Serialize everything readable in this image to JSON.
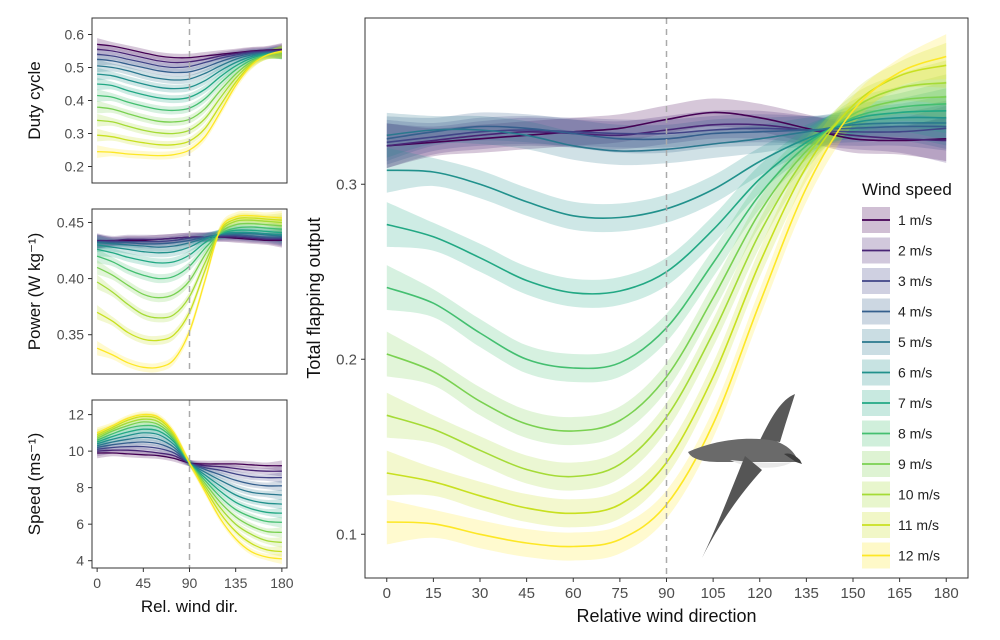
{
  "chart_data": [
    {
      "type": "line",
      "id": "duty",
      "ylabel": "Duty cycle",
      "xlabel": "",
      "ylim": [
        0.15,
        0.65
      ],
      "xlim": [
        -5,
        185
      ],
      "yticks": [
        "0.6",
        "0.5",
        "0.4",
        "0.3",
        "0.2"
      ],
      "ytick_values": [
        0.6,
        0.5,
        0.4,
        0.3,
        0.2
      ],
      "reference_x": 90,
      "series_note": "speeds 1..12 m/s, values at x = 0,15,...,180",
      "series": [
        {
          "name": "1 m/s",
          "values": [
            0.57,
            0.565,
            0.555,
            0.545,
            0.535,
            0.53,
            0.53,
            0.535,
            0.54,
            0.545,
            0.55,
            0.553,
            0.555
          ]
        },
        {
          "name": "2 m/s",
          "values": [
            0.555,
            0.55,
            0.54,
            0.53,
            0.52,
            0.515,
            0.517,
            0.525,
            0.535,
            0.542,
            0.548,
            0.551,
            0.553
          ]
        },
        {
          "name": "3 m/s",
          "values": [
            0.54,
            0.535,
            0.525,
            0.515,
            0.505,
            0.5,
            0.503,
            0.515,
            0.528,
            0.538,
            0.545,
            0.548,
            0.55
          ]
        },
        {
          "name": "4 m/s",
          "values": [
            0.525,
            0.52,
            0.51,
            0.5,
            0.49,
            0.485,
            0.487,
            0.5,
            0.518,
            0.532,
            0.542,
            0.546,
            0.548
          ]
        },
        {
          "name": "5 m/s",
          "values": [
            0.505,
            0.5,
            0.49,
            0.477,
            0.467,
            0.462,
            0.465,
            0.482,
            0.505,
            0.525,
            0.538,
            0.544,
            0.546
          ]
        },
        {
          "name": "6 m/s",
          "values": [
            0.48,
            0.475,
            0.462,
            0.45,
            0.44,
            0.436,
            0.44,
            0.46,
            0.49,
            0.515,
            0.533,
            0.542,
            0.545
          ]
        },
        {
          "name": "7 m/s",
          "values": [
            0.45,
            0.445,
            0.43,
            0.418,
            0.408,
            0.404,
            0.41,
            0.434,
            0.472,
            0.505,
            0.528,
            0.54,
            0.544
          ]
        },
        {
          "name": "8 m/s",
          "values": [
            0.415,
            0.41,
            0.395,
            0.383,
            0.373,
            0.37,
            0.377,
            0.405,
            0.452,
            0.493,
            0.522,
            0.538,
            0.544
          ]
        },
        {
          "name": "9 m/s",
          "values": [
            0.38,
            0.374,
            0.36,
            0.347,
            0.337,
            0.335,
            0.343,
            0.375,
            0.43,
            0.48,
            0.517,
            0.537,
            0.544
          ]
        },
        {
          "name": "10 m/s",
          "values": [
            0.34,
            0.335,
            0.322,
            0.31,
            0.302,
            0.3,
            0.31,
            0.345,
            0.408,
            0.468,
            0.512,
            0.536,
            0.545
          ]
        },
        {
          "name": "11 m/s",
          "values": [
            0.295,
            0.29,
            0.28,
            0.272,
            0.266,
            0.266,
            0.277,
            0.315,
            0.385,
            0.455,
            0.508,
            0.536,
            0.547
          ]
        },
        {
          "name": "12 m/s",
          "values": [
            0.245,
            0.243,
            0.238,
            0.235,
            0.233,
            0.236,
            0.25,
            0.29,
            0.365,
            0.445,
            0.505,
            0.537,
            0.55
          ]
        }
      ]
    },
    {
      "type": "line",
      "id": "power",
      "ylabel": "Power (W kg⁻¹)",
      "xlabel": "",
      "ylim": [
        0.315,
        0.462
      ],
      "xlim": [
        -5,
        185
      ],
      "yticks": [
        "0.45",
        "0.40",
        "0.35"
      ],
      "ytick_values": [
        0.45,
        0.4,
        0.35
      ],
      "reference_x": 90,
      "series": [
        {
          "name": "1 m/s",
          "values": [
            0.433,
            0.433,
            0.434,
            0.434,
            0.435,
            0.436,
            0.437,
            0.437,
            0.437,
            0.436,
            0.435,
            0.434,
            0.434
          ]
        },
        {
          "name": "2 m/s",
          "values": [
            0.434,
            0.434,
            0.435,
            0.435,
            0.435,
            0.436,
            0.437,
            0.437,
            0.437,
            0.437,
            0.436,
            0.435,
            0.435
          ]
        },
        {
          "name": "3 m/s",
          "values": [
            0.433,
            0.433,
            0.433,
            0.433,
            0.433,
            0.434,
            0.436,
            0.437,
            0.438,
            0.438,
            0.437,
            0.436,
            0.436
          ]
        },
        {
          "name": "4 m/s",
          "values": [
            0.433,
            0.432,
            0.432,
            0.431,
            0.431,
            0.432,
            0.434,
            0.437,
            0.439,
            0.439,
            0.438,
            0.437,
            0.437
          ]
        },
        {
          "name": "5 m/s",
          "values": [
            0.432,
            0.431,
            0.43,
            0.429,
            0.428,
            0.429,
            0.432,
            0.436,
            0.439,
            0.44,
            0.44,
            0.439,
            0.438
          ]
        },
        {
          "name": "6 m/s",
          "values": [
            0.43,
            0.428,
            0.426,
            0.424,
            0.423,
            0.424,
            0.428,
            0.435,
            0.44,
            0.441,
            0.441,
            0.44,
            0.439
          ]
        },
        {
          "name": "7 m/s",
          "values": [
            0.426,
            0.423,
            0.419,
            0.416,
            0.414,
            0.415,
            0.421,
            0.432,
            0.44,
            0.443,
            0.443,
            0.442,
            0.441
          ]
        },
        {
          "name": "8 m/s",
          "values": [
            0.42,
            0.415,
            0.408,
            0.403,
            0.4,
            0.402,
            0.411,
            0.427,
            0.44,
            0.445,
            0.446,
            0.445,
            0.444
          ]
        },
        {
          "name": "9 m/s",
          "values": [
            0.41,
            0.403,
            0.394,
            0.386,
            0.383,
            0.386,
            0.398,
            0.421,
            0.441,
            0.448,
            0.449,
            0.448,
            0.447
          ]
        },
        {
          "name": "10 m/s",
          "values": [
            0.397,
            0.388,
            0.377,
            0.368,
            0.365,
            0.368,
            0.384,
            0.414,
            0.442,
            0.451,
            0.452,
            0.451,
            0.45
          ]
        },
        {
          "name": "11 m/s",
          "values": [
            0.37,
            0.362,
            0.352,
            0.346,
            0.345,
            0.35,
            0.37,
            0.407,
            0.443,
            0.453,
            0.454,
            0.453,
            0.452
          ]
        },
        {
          "name": "12 m/s",
          "values": [
            0.338,
            0.332,
            0.325,
            0.321,
            0.321,
            0.328,
            0.353,
            0.398,
            0.444,
            0.455,
            0.456,
            0.455,
            0.454
          ]
        }
      ]
    },
    {
      "type": "line",
      "id": "speed",
      "ylabel": "Speed (ms⁻¹)",
      "xlabel": "Rel. wind dir.",
      "ylim": [
        3.6,
        12.8
      ],
      "xlim": [
        -5,
        185
      ],
      "yticks": [
        "12",
        "10",
        "8",
        "6",
        "4"
      ],
      "ytick_values": [
        12,
        10,
        8,
        6,
        4
      ],
      "xticks": [
        "0",
        "45",
        "90",
        "135",
        "180"
      ],
      "xtick_values": [
        0,
        45,
        90,
        135,
        180
      ],
      "reference_x": 90,
      "series": [
        {
          "name": "1 m/s",
          "values": [
            9.9,
            9.9,
            9.85,
            9.8,
            9.75,
            9.6,
            9.35,
            9.3,
            9.3,
            9.3,
            9.25,
            9.2,
            9.2
          ]
        },
        {
          "name": "2 m/s",
          "values": [
            10.0,
            10.05,
            10.05,
            10.0,
            9.9,
            9.75,
            9.35,
            9.2,
            9.15,
            9.05,
            8.95,
            8.9,
            8.9
          ]
        },
        {
          "name": "3 m/s",
          "values": [
            10.1,
            10.2,
            10.25,
            10.25,
            10.15,
            9.9,
            9.35,
            9.1,
            8.95,
            8.75,
            8.6,
            8.55,
            8.55
          ]
        },
        {
          "name": "4 m/s",
          "values": [
            10.2,
            10.35,
            10.45,
            10.5,
            10.4,
            10.05,
            9.35,
            9.0,
            8.7,
            8.4,
            8.2,
            8.1,
            8.1
          ]
        },
        {
          "name": "5 m/s",
          "values": [
            10.3,
            10.5,
            10.65,
            10.75,
            10.65,
            10.2,
            9.35,
            8.85,
            8.4,
            8.0,
            7.75,
            7.65,
            7.6
          ]
        },
        {
          "name": "6 m/s",
          "values": [
            10.4,
            10.65,
            10.85,
            11.0,
            10.9,
            10.35,
            9.35,
            8.7,
            8.1,
            7.6,
            7.3,
            7.15,
            7.1
          ]
        },
        {
          "name": "7 m/s",
          "values": [
            10.5,
            10.8,
            11.05,
            11.2,
            11.1,
            10.5,
            9.35,
            8.55,
            7.8,
            7.2,
            6.85,
            6.65,
            6.6
          ]
        },
        {
          "name": "8 m/s",
          "values": [
            10.6,
            10.95,
            11.25,
            11.4,
            11.3,
            10.6,
            9.35,
            8.4,
            7.5,
            6.8,
            6.4,
            6.15,
            6.1
          ]
        },
        {
          "name": "9 m/s",
          "values": [
            10.7,
            11.1,
            11.4,
            11.6,
            11.45,
            10.7,
            9.35,
            8.25,
            7.2,
            6.4,
            5.9,
            5.6,
            5.55
          ]
        },
        {
          "name": "10 m/s",
          "values": [
            10.8,
            11.2,
            11.55,
            11.75,
            11.6,
            10.8,
            9.35,
            8.1,
            6.9,
            6.0,
            5.45,
            5.1,
            5.0
          ]
        },
        {
          "name": "11 m/s",
          "values": [
            10.9,
            11.3,
            11.7,
            11.9,
            11.75,
            10.9,
            9.35,
            7.95,
            6.6,
            5.6,
            4.95,
            4.6,
            4.5
          ]
        },
        {
          "name": "12 m/s",
          "values": [
            11.0,
            11.4,
            11.8,
            12.0,
            11.85,
            11.0,
            9.35,
            7.8,
            6.3,
            5.2,
            4.5,
            4.2,
            4.1
          ]
        }
      ]
    },
    {
      "type": "line",
      "id": "flapping",
      "ylabel": "Total flapping output",
      "xlabel": "Relative wind direction",
      "ylim": [
        0.075,
        0.395
      ],
      "xlim": [
        -7,
        187
      ],
      "yticks": [
        "0.3",
        "0.2",
        "0.1"
      ],
      "ytick_values": [
        0.3,
        0.2,
        0.1
      ],
      "xticks": [
        "0",
        "15",
        "30",
        "45",
        "60",
        "75",
        "90",
        "105",
        "120",
        "135",
        "150",
        "165",
        "180"
      ],
      "xtick_values": [
        0,
        15,
        30,
        45,
        60,
        75,
        90,
        105,
        120,
        135,
        150,
        165,
        180
      ],
      "reference_x": 90,
      "legend_title": "Wind speed",
      "legend_position": "right",
      "series": [
        {
          "name": "1 m/s",
          "values": [
            0.322,
            0.324,
            0.326,
            0.328,
            0.33,
            0.332,
            0.337,
            0.341,
            0.338,
            0.332,
            0.326,
            0.325,
            0.326
          ]
        },
        {
          "name": "2 m/s",
          "values": [
            0.322,
            0.325,
            0.328,
            0.33,
            0.329,
            0.328,
            0.331,
            0.334,
            0.334,
            0.331,
            0.328,
            0.326,
            0.325
          ]
        },
        {
          "name": "3 m/s",
          "values": [
            0.324,
            0.327,
            0.33,
            0.331,
            0.33,
            0.329,
            0.329,
            0.331,
            0.332,
            0.331,
            0.33,
            0.33,
            0.332
          ]
        },
        {
          "name": "4 m/s",
          "values": [
            0.326,
            0.33,
            0.333,
            0.332,
            0.329,
            0.326,
            0.326,
            0.329,
            0.33,
            0.331,
            0.332,
            0.333,
            0.333
          ]
        },
        {
          "name": "5 m/s",
          "values": [
            0.328,
            0.331,
            0.331,
            0.328,
            0.322,
            0.319,
            0.32,
            0.323,
            0.326,
            0.33,
            0.334,
            0.335,
            0.335
          ]
        },
        {
          "name": "6 m/s",
          "values": [
            0.308,
            0.307,
            0.3,
            0.29,
            0.282,
            0.281,
            0.286,
            0.297,
            0.313,
            0.326,
            0.335,
            0.338,
            0.338
          ]
        },
        {
          "name": "7 m/s",
          "values": [
            0.277,
            0.27,
            0.258,
            0.245,
            0.238,
            0.239,
            0.25,
            0.274,
            0.303,
            0.324,
            0.337,
            0.341,
            0.342
          ]
        },
        {
          "name": "8 m/s",
          "values": [
            0.241,
            0.232,
            0.215,
            0.2,
            0.195,
            0.198,
            0.218,
            0.255,
            0.294,
            0.322,
            0.338,
            0.344,
            0.346
          ]
        },
        {
          "name": "9 m/s",
          "values": [
            0.203,
            0.193,
            0.176,
            0.163,
            0.159,
            0.165,
            0.19,
            0.235,
            0.284,
            0.319,
            0.34,
            0.348,
            0.35
          ]
        },
        {
          "name": "10 m/s",
          "values": [
            0.168,
            0.16,
            0.148,
            0.137,
            0.133,
            0.14,
            0.167,
            0.215,
            0.272,
            0.316,
            0.343,
            0.355,
            0.358
          ]
        },
        {
          "name": "11 m/s",
          "values": [
            0.135,
            0.13,
            0.122,
            0.115,
            0.112,
            0.117,
            0.141,
            0.19,
            0.255,
            0.31,
            0.345,
            0.362,
            0.368
          ]
        },
        {
          "name": "12 m/s",
          "values": [
            0.107,
            0.106,
            0.1,
            0.095,
            0.093,
            0.097,
            0.117,
            0.163,
            0.232,
            0.298,
            0.342,
            0.364,
            0.373
          ]
        }
      ]
    }
  ],
  "colors": {
    "palette": [
      "#440154",
      "#482475",
      "#414487",
      "#355f8d",
      "#2a788e",
      "#21918c",
      "#22a884",
      "#44bf70",
      "#7ad151",
      "#a5db36",
      "#c8e020",
      "#fde725"
    ],
    "reference_line": "#aaaaaa"
  },
  "icons": {
    "bird": "albatross-silhouette"
  }
}
